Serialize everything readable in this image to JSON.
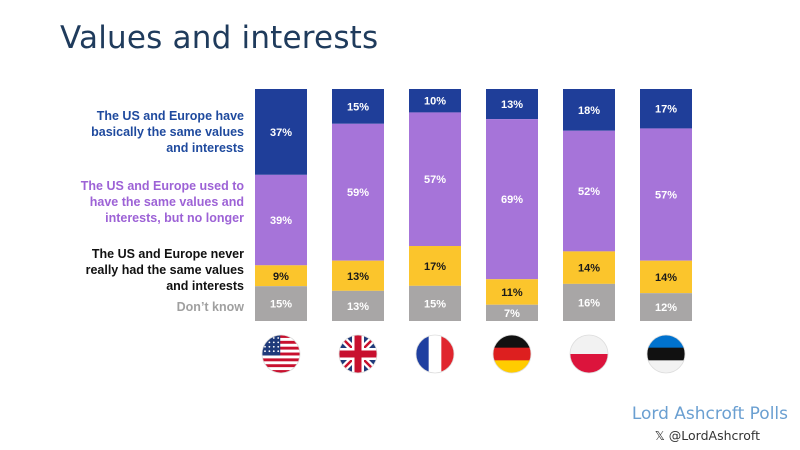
{
  "title": "Values and interests",
  "chart_data": {
    "type": "bar",
    "stacked": true,
    "categories": [
      "US",
      "UK",
      "France",
      "Germany",
      "Poland",
      "Estonia"
    ],
    "series": [
      {
        "name": "The US and Europe have basically the same values and interests",
        "color": "#1f3e99",
        "values": [
          37,
          15,
          10,
          13,
          18,
          17
        ]
      },
      {
        "name": "The US and Europe used to have the same values and interests, but no longer",
        "color": "#a674d9",
        "values": [
          39,
          59,
          57,
          69,
          52,
          57
        ]
      },
      {
        "name": "The US and Europe never really had the same values and interests",
        "color": "#fbc52c",
        "values": [
          9,
          13,
          17,
          11,
          14,
          14
        ]
      },
      {
        "name": "Don’t know",
        "color": "#a8a6a6",
        "values": [
          15,
          13,
          15,
          7,
          16,
          12
        ]
      }
    ],
    "value_suffix": "%",
    "legend_colors": [
      "#1f4a9e",
      "#9d62d6",
      "#111111",
      "#a0a0a0"
    ],
    "flag_icons": [
      "us-flag-icon",
      "uk-flag-icon",
      "france-flag-icon",
      "germany-flag-icon",
      "poland-flag-icon",
      "estonia-flag-icon"
    ]
  },
  "legend": {
    "item1": [
      "The US and Europe have",
      "basically the same values",
      "and interests"
    ],
    "item2": [
      "The US and Europe used to",
      "have the same values and",
      "interests, but no longer"
    ],
    "item3": [
      "The US and Europe never",
      "really had the same values",
      "and interests"
    ],
    "item4": [
      "Don’t know"
    ]
  },
  "footer": {
    "brand": "Lord Ashcroft Polls",
    "handle": "𝕏 @LordAshcroft"
  }
}
